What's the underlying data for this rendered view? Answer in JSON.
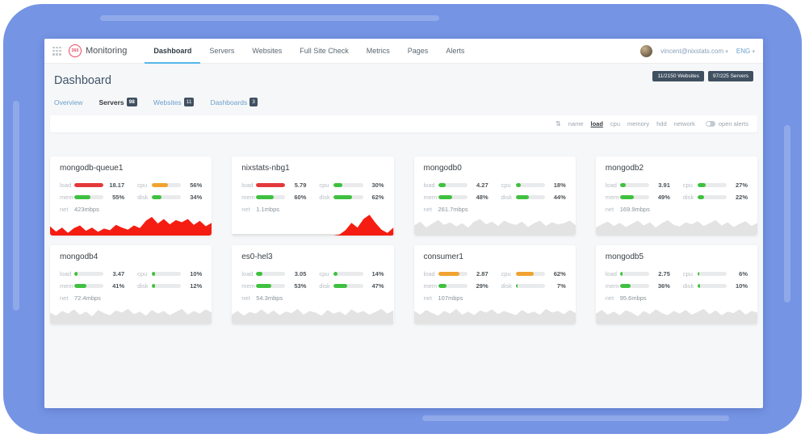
{
  "navbar": {
    "logo_circle_text": "360",
    "brand": "Monitoring",
    "items": [
      {
        "label": "Dashboard",
        "active": true
      },
      {
        "label": "Servers",
        "active": false
      },
      {
        "label": "Websites",
        "active": false
      },
      {
        "label": "Full Site Check",
        "active": false
      },
      {
        "label": "Metrics",
        "active": false
      },
      {
        "label": "Pages",
        "active": false
      },
      {
        "label": "Alerts",
        "active": false
      }
    ],
    "user_email": "vincent@nixstats.com",
    "lang": "ENG",
    "caret": "▾"
  },
  "header": {
    "title": "Dashboard",
    "badges": [
      "11/2150 Websites",
      "97/225 Servers"
    ]
  },
  "tabs": [
    {
      "label": "Overview",
      "count": null,
      "active": false
    },
    {
      "label": "Servers",
      "count": "98",
      "active": true
    },
    {
      "label": "Websites",
      "count": "11",
      "active": false
    },
    {
      "label": "Dashboards",
      "count": "3",
      "active": false
    }
  ],
  "sortbar": {
    "sort_icon": "⇅",
    "options": [
      "name",
      "load",
      "cpu",
      "memory",
      "hdd",
      "network"
    ],
    "active": "load",
    "toggle_label": "open alerts"
  },
  "metric_labels": {
    "load": "load",
    "cpu": "cpu",
    "mem": "mem",
    "disk": "disk",
    "net": "net"
  },
  "colors": {
    "green": "#3fc13f",
    "orange": "#f0a330",
    "red": "#e4393c",
    "spark_red": "#f51d12",
    "spark_gray": "#e3e3e3",
    "accent_blue": "#56b6e8",
    "badge_dark": "#405061",
    "frame_blue": "#7594e4"
  },
  "chart_data": [],
  "cards": [
    {
      "name": "mongodb-queue1",
      "load": {
        "value": "18.17",
        "pct": 100,
        "color": "red"
      },
      "cpu": {
        "value": "56%",
        "pct": 56,
        "color": "orange"
      },
      "mem": {
        "value": "55%",
        "pct": 55,
        "color": "green"
      },
      "disk": {
        "value": "34%",
        "pct": 34,
        "color": "green"
      },
      "net": "423mbps",
      "sparkline": [
        {
          "color": "spark_gray",
          "points": [
            12,
            12,
            12,
            12,
            12,
            12,
            12,
            12,
            12,
            12,
            12,
            12,
            12,
            12,
            12,
            12,
            12,
            12,
            12,
            12,
            12,
            12,
            12,
            12,
            12,
            12,
            12,
            12
          ]
        },
        {
          "color": "spark_red",
          "points": [
            35,
            15,
            30,
            10,
            28,
            38,
            18,
            30,
            14,
            26,
            20,
            40,
            30,
            22,
            38,
            28,
            55,
            70,
            45,
            62,
            42,
            58,
            50,
            62,
            40,
            55,
            35,
            48
          ]
        }
      ]
    },
    {
      "name": "nixstats-nbg1",
      "load": {
        "value": "5.79",
        "pct": 100,
        "color": "red"
      },
      "cpu": {
        "value": "30%",
        "pct": 30,
        "color": "green"
      },
      "mem": {
        "value": "60%",
        "pct": 60,
        "color": "green"
      },
      "disk": {
        "value": "62%",
        "pct": 62,
        "color": "green"
      },
      "net": "1.1mbps",
      "sparkline": [
        {
          "color": "spark_gray",
          "points": [
            6,
            6,
            6,
            6,
            6,
            6,
            6,
            6,
            6,
            6,
            6,
            6,
            6,
            6,
            6,
            6,
            6,
            6,
            6,
            6,
            6,
            6,
            6,
            6,
            6,
            6,
            6,
            6
          ]
        },
        {
          "color": "spark_red",
          "points": [
            0,
            0,
            0,
            0,
            0,
            0,
            0,
            0,
            0,
            0,
            0,
            0,
            0,
            0,
            0,
            0,
            0,
            0,
            4,
            20,
            48,
            30,
            62,
            78,
            48,
            22,
            10,
            30
          ]
        }
      ]
    },
    {
      "name": "mongodb0",
      "load": {
        "value": "4.27",
        "pct": 26,
        "color": "green"
      },
      "cpu": {
        "value": "18%",
        "pct": 18,
        "color": "green"
      },
      "mem": {
        "value": "48%",
        "pct": 48,
        "color": "green"
      },
      "disk": {
        "value": "44%",
        "pct": 44,
        "color": "green"
      },
      "net": "261.7mbps",
      "sparkline": [
        {
          "color": "spark_gray",
          "points": [
            38,
            52,
            30,
            45,
            58,
            40,
            50,
            34,
            46,
            30,
            52,
            62,
            42,
            52,
            36,
            56,
            46,
            40,
            52,
            32,
            46,
            56,
            36,
            50,
            42,
            46,
            56,
            38
          ]
        }
      ]
    },
    {
      "name": "mongodb2",
      "load": {
        "value": "3.91",
        "pct": 20,
        "color": "green"
      },
      "cpu": {
        "value": "27%",
        "pct": 27,
        "color": "green"
      },
      "mem": {
        "value": "49%",
        "pct": 49,
        "color": "green"
      },
      "disk": {
        "value": "22%",
        "pct": 22,
        "color": "green"
      },
      "net": "169.9mbps",
      "sparkline": [
        {
          "color": "spark_gray",
          "points": [
            30,
            42,
            52,
            36,
            48,
            32,
            44,
            56,
            38,
            50,
            30,
            46,
            58,
            40,
            34,
            50,
            42,
            54,
            36,
            46,
            58,
            38,
            50,
            32,
            44,
            54,
            36,
            48
          ]
        }
      ]
    },
    {
      "name": "mongodb4",
      "load": {
        "value": "3.47",
        "pct": 10,
        "color": "green"
      },
      "cpu": {
        "value": "10%",
        "pct": 10,
        "color": "green"
      },
      "mem": {
        "value": "41%",
        "pct": 41,
        "color": "green"
      },
      "disk": {
        "value": "12%",
        "pct": 12,
        "color": "green"
      },
      "net": "72.4mbps",
      "sparkline": [
        {
          "color": "spark_gray",
          "points": [
            44,
            32,
            50,
            40,
            56,
            36,
            48,
            30,
            54,
            42,
            34,
            52,
            44,
            58,
            38,
            48,
            32,
            54,
            40,
            50,
            34,
            46,
            58,
            36,
            50,
            40,
            56,
            44
          ]
        }
      ]
    },
    {
      "name": "es0-hel3",
      "load": {
        "value": "3.05",
        "pct": 22,
        "color": "green"
      },
      "cpu": {
        "value": "14%",
        "pct": 14,
        "color": "green"
      },
      "mem": {
        "value": "53%",
        "pct": 53,
        "color": "green"
      },
      "disk": {
        "value": "47%",
        "pct": 47,
        "color": "green"
      },
      "net": "54.3mbps",
      "sparkline": [
        {
          "color": "spark_gray",
          "points": [
            36,
            50,
            32,
            46,
            40,
            56,
            38,
            52,
            34,
            48,
            42,
            58,
            36,
            50,
            44,
            32,
            54,
            40,
            48,
            34,
            56,
            42,
            50,
            36,
            46,
            58,
            40,
            52
          ]
        }
      ]
    },
    {
      "name": "consumer1",
      "load": {
        "value": "2.87",
        "pct": 72,
        "color": "orange"
      },
      "cpu": {
        "value": "62%",
        "pct": 62,
        "color": "orange"
      },
      "mem": {
        "value": "29%",
        "pct": 29,
        "color": "green"
      },
      "disk": {
        "value": "7%",
        "pct": 7,
        "color": "green"
      },
      "net": "107mbps",
      "sparkline": [
        {
          "color": "spark_gray",
          "points": [
            50,
            36,
            54,
            42,
            32,
            50,
            40,
            58,
            36,
            48,
            34,
            52,
            44,
            56,
            38,
            50,
            42,
            34,
            54,
            40,
            48,
            36,
            58,
            44,
            50,
            38,
            54,
            42
          ]
        }
      ]
    },
    {
      "name": "mongodb5",
      "load": {
        "value": "2.75",
        "pct": 8,
        "color": "green"
      },
      "cpu": {
        "value": "6%",
        "pct": 6,
        "color": "green"
      },
      "mem": {
        "value": "36%",
        "pct": 36,
        "color": "green"
      },
      "disk": {
        "value": "10%",
        "pct": 10,
        "color": "green"
      },
      "net": "95.6mbps",
      "sparkline": [
        {
          "color": "spark_gray",
          "points": [
            40,
            54,
            36,
            48,
            34,
            52,
            44,
            30,
            50,
            38,
            56,
            42,
            34,
            50,
            40,
            54,
            36,
            46,
            58,
            38,
            52,
            34,
            48,
            42,
            56,
            36,
            50,
            44
          ]
        }
      ]
    }
  ]
}
